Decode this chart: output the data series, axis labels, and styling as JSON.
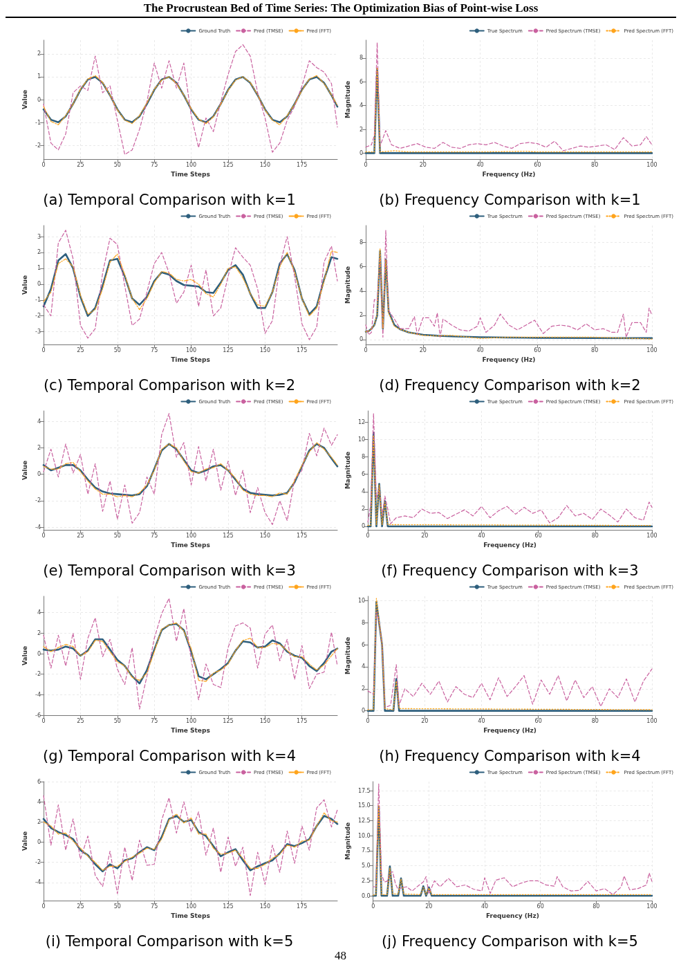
{
  "chart_data": [
    {
      "type": "line",
      "title": "(a) Temporal Comparison with k=1",
      "xlabel": "Time Steps",
      "ylabel": "Value",
      "annotations": [
        "The Procrustean Bed of Time Series: The Optimization Bias of Point-wise Loss"
      ],
      "x": [
        0,
        5,
        10,
        15,
        20,
        25,
        30,
        35,
        40,
        45,
        50,
        55,
        60,
        65,
        70,
        75,
        80,
        85,
        90,
        95,
        100,
        105,
        110,
        115,
        120,
        125,
        130,
        135,
        140,
        145,
        150,
        155,
        160,
        165,
        170,
        175,
        180,
        185,
        190,
        195,
        199
      ],
      "xlim": [
        0,
        199
      ],
      "xticks": [
        0,
        25,
        50,
        75,
        100,
        125,
        150,
        175
      ],
      "ylim": [
        -2.6,
        2.6
      ],
      "yticks": [
        -2,
        -1,
        0,
        1,
        2
      ],
      "grid": true,
      "legend": "top right",
      "series": [
        {
          "name": "Ground Truth",
          "color": "#2e5f7d",
          "line_style": "solid",
          "values": [
            -0.43,
            -0.88,
            -0.99,
            -0.73,
            -0.19,
            0.43,
            0.88,
            0.99,
            0.73,
            0.19,
            -0.43,
            -0.88,
            -0.99,
            -0.73,
            -0.19,
            0.43,
            0.88,
            0.99,
            0.73,
            0.19,
            -0.43,
            -0.88,
            -0.99,
            -0.73,
            -0.19,
            0.43,
            0.88,
            0.99,
            0.73,
            0.19,
            -0.43,
            -0.88,
            -0.99,
            -0.73,
            -0.19,
            0.43,
            0.88,
            0.99,
            0.73,
            0.19,
            -0.31
          ]
        },
        {
          "name": "Pred (TMSE)",
          "color": "#c9619f",
          "line_style": "dashed",
          "values": [
            -0.2,
            -1.9,
            -2.2,
            -1.5,
            0.3,
            0.6,
            0.4,
            1.9,
            0.3,
            0.6,
            -0.9,
            -2.4,
            -2.2,
            -1.3,
            -0.1,
            1.6,
            0.5,
            1.7,
            0.5,
            1.6,
            -0.7,
            -2.1,
            -0.8,
            -1.4,
            -0.1,
            1.1,
            2.1,
            2.4,
            1.9,
            0.3,
            -0.8,
            -2.3,
            -1.9,
            -0.9,
            -0.3,
            0.6,
            1.7,
            1.4,
            1.2,
            0.7,
            -1.2
          ]
        },
        {
          "name": "Pred (FFT)",
          "color": "#ffa41b",
          "line_style": "dashdot",
          "values": [
            -0.3,
            -0.95,
            -1.1,
            -0.7,
            -0.2,
            0.45,
            0.9,
            1.05,
            0.75,
            0.2,
            -0.45,
            -0.9,
            -1.05,
            -0.7,
            -0.15,
            0.45,
            0.85,
            1.0,
            0.7,
            0.2,
            -0.4,
            -0.85,
            -1.05,
            -0.75,
            -0.2,
            0.4,
            0.85,
            1.0,
            0.75,
            0.2,
            -0.45,
            -0.9,
            -1.1,
            -0.7,
            -0.2,
            0.4,
            0.9,
            1.05,
            0.7,
            0.2,
            -0.25
          ]
        }
      ]
    },
    {
      "type": "line",
      "title": "(b) Frequency Comparison with k=1",
      "xlabel": "Frequency (Hz)",
      "ylabel": "Magnitude",
      "xlim": [
        0,
        100
      ],
      "xticks": [
        0,
        20,
        40,
        60,
        80,
        100
      ],
      "ylim": [
        -0.5,
        9.5
      ],
      "yticks": [
        0,
        2,
        4,
        6,
        8
      ],
      "grid": true,
      "legend": "top right",
      "series": [
        {
          "name": "True Spectrum",
          "color": "#2e5f7d",
          "line_style": "solid",
          "x": [
            0,
            3,
            4,
            5,
            100
          ],
          "values": [
            0,
            0,
            7.1,
            0,
            0
          ]
        },
        {
          "name": "Pred Spectrum (TMSE)",
          "color": "#c9619f",
          "line_style": "dashed",
          "x": [
            0,
            2,
            3,
            4,
            5,
            7,
            9,
            12,
            15,
            18,
            21,
            24,
            27,
            30,
            33,
            36,
            39,
            42,
            45,
            48,
            51,
            54,
            57,
            60,
            63,
            66,
            69,
            72,
            75,
            78,
            81,
            84,
            87,
            90,
            93,
            96,
            98,
            100
          ],
          "values": [
            0.5,
            0.7,
            1.5,
            9.3,
            0.6,
            1.9,
            0.7,
            0.4,
            0.6,
            0.8,
            0.5,
            0.4,
            0.9,
            0.5,
            0.4,
            0.7,
            0.8,
            0.7,
            0.9,
            0.6,
            0.4,
            0.8,
            0.9,
            0.8,
            0.5,
            1.0,
            0.2,
            0.4,
            0.6,
            0.5,
            0.6,
            0.7,
            0.3,
            1.3,
            0.6,
            0.7,
            1.4,
            0.7
          ]
        },
        {
          "name": "Pred Spectrum (FFT)",
          "color": "#ffa41b",
          "line_style": "dotted",
          "x": [
            0,
            3,
            4,
            5,
            10,
            15,
            20,
            40,
            56,
            60,
            80,
            100
          ],
          "values": [
            0.1,
            0.1,
            7.2,
            0.1,
            0.2,
            0.1,
            0.1,
            0.1,
            0.15,
            0.1,
            0.1,
            0.1
          ]
        }
      ]
    },
    {
      "type": "line",
      "title": "(c) Temporal Comparison with k=2",
      "xlabel": "Time Steps",
      "ylabel": "Value",
      "x": [
        0,
        5,
        10,
        15,
        20,
        25,
        30,
        35,
        40,
        45,
        50,
        55,
        60,
        65,
        70,
        75,
        80,
        85,
        90,
        95,
        100,
        105,
        110,
        115,
        120,
        125,
        130,
        135,
        140,
        145,
        150,
        155,
        160,
        165,
        170,
        175,
        180,
        185,
        190,
        195,
        199
      ],
      "xlim": [
        0,
        199
      ],
      "xticks": [
        0,
        25,
        50,
        75,
        100,
        125,
        150,
        175
      ],
      "ylim": [
        -3.8,
        3.7
      ],
      "yticks": [
        -3,
        -2,
        -1,
        0,
        1,
        2,
        3
      ],
      "grid": true,
      "legend": "top right",
      "series": [
        {
          "name": "Ground Truth",
          "color": "#2e5f7d",
          "line_style": "solid",
          "values": [
            -1.4,
            -0.3,
            1.5,
            1.9,
            1.0,
            -0.8,
            -2.0,
            -1.5,
            -0.1,
            1.5,
            1.6,
            0.5,
            -0.9,
            -1.3,
            -0.8,
            0.2,
            0.75,
            0.6,
            0.2,
            -0.05,
            -0.1,
            -0.15,
            -0.5,
            -0.55,
            0.1,
            0.9,
            1.2,
            0.6,
            -0.6,
            -1.5,
            -1.5,
            -0.5,
            1.3,
            1.9,
            0.9,
            -0.9,
            -1.9,
            -1.4,
            0.3,
            1.7,
            1.6
          ]
        },
        {
          "name": "Pred (TMSE)",
          "color": "#c9619f",
          "line_style": "dashed",
          "values": [
            -1.3,
            -2.0,
            2.6,
            3.4,
            1.6,
            -2.6,
            -3.4,
            -2.8,
            0.7,
            2.9,
            2.5,
            -0.1,
            -2.6,
            -2.2,
            -0.5,
            1.3,
            2.0,
            0.7,
            -1.2,
            -0.5,
            1.2,
            -1.4,
            0.9,
            -2.0,
            -1.5,
            0.5,
            2.3,
            1.7,
            1.2,
            -0.3,
            -3.1,
            -2.3,
            1.2,
            3.0,
            0.5,
            -2.5,
            -3.5,
            -2.7,
            1.4,
            2.4,
            0.2
          ]
        },
        {
          "name": "Pred (FFT)",
          "color": "#ffa41b",
          "line_style": "dashdot",
          "values": [
            -1.1,
            -0.5,
            1.3,
            1.6,
            1.1,
            -0.7,
            -1.9,
            -1.6,
            -0.3,
            1.4,
            1.9,
            0.6,
            -0.9,
            -1.6,
            -0.9,
            0.1,
            0.8,
            0.7,
            0.3,
            0.2,
            0.3,
            0.0,
            -0.6,
            -0.8,
            0.0,
            1.0,
            1.1,
            0.4,
            -0.6,
            -1.3,
            -1.4,
            -0.5,
            1.1,
            2.0,
            0.8,
            -0.9,
            -2.0,
            -1.5,
            0.2,
            2.1,
            2.0
          ]
        }
      ]
    },
    {
      "type": "line",
      "title": "(d) Frequency Comparison with k=2",
      "xlabel": "Frequency (Hz)",
      "ylabel": "Magnitude",
      "xlim": [
        0,
        100
      ],
      "xticks": [
        0,
        20,
        40,
        60,
        80,
        100
      ],
      "ylim": [
        -0.4,
        9.4
      ],
      "yticks": [
        0,
        2,
        4,
        6,
        8
      ],
      "grid": true,
      "legend": "top right",
      "series": [
        {
          "name": "True Spectrum",
          "color": "#2e5f7d",
          "line_style": "solid",
          "x": [
            0,
            1,
            2,
            3,
            4,
            5,
            6,
            7,
            8,
            10,
            12,
            15,
            20,
            25,
            30,
            40,
            50,
            60,
            80,
            100
          ],
          "values": [
            0.65,
            0.7,
            0.9,
            1.2,
            2.0,
            7.3,
            0.9,
            6.6,
            2.3,
            1.2,
            0.85,
            0.6,
            0.4,
            0.32,
            0.27,
            0.2,
            0.17,
            0.15,
            0.13,
            0.12
          ]
        },
        {
          "name": "Pred Spectrum (TMSE)",
          "color": "#c9619f",
          "line_style": "dashed",
          "x": [
            0,
            1,
            2,
            3,
            4,
            5,
            6,
            7,
            8,
            10,
            12,
            15,
            17,
            18,
            20,
            22,
            24,
            25,
            26,
            27,
            30,
            33,
            36,
            39,
            40,
            42,
            45,
            47,
            50,
            53,
            56,
            59,
            62,
            65,
            68,
            71,
            74,
            77,
            80,
            83,
            86,
            88,
            90,
            91,
            93,
            96,
            98,
            99,
            100
          ],
          "values": [
            1.2,
            0.4,
            0.6,
            3.3,
            3.2,
            7.0,
            0.2,
            9.0,
            2.4,
            1.7,
            0.9,
            0.9,
            1.9,
            0.4,
            1.8,
            1.8,
            1.1,
            2.2,
            0.2,
            1.7,
            1.2,
            0.8,
            0.7,
            1.1,
            1.8,
            0.6,
            1.2,
            2.1,
            1.2,
            0.8,
            1.2,
            1.6,
            0.5,
            1.1,
            1.2,
            1.1,
            0.8,
            1.3,
            0.8,
            0.9,
            0.6,
            0.6,
            2.1,
            0.2,
            1.4,
            1.4,
            0.6,
            2.6,
            2.0
          ]
        },
        {
          "name": "Pred Spectrum (FFT)",
          "color": "#ffa41b",
          "line_style": "dotted",
          "x": [
            0,
            1,
            2,
            3,
            4,
            5,
            6,
            7,
            8,
            10,
            12,
            15,
            20,
            25,
            30,
            40,
            50,
            60,
            80,
            100
          ],
          "values": [
            0.65,
            0.7,
            0.9,
            1.2,
            2.1,
            7.5,
            0.9,
            6.6,
            2.2,
            1.1,
            0.85,
            0.6,
            0.35,
            0.3,
            0.35,
            0.1,
            0.2,
            0.2,
            0.2,
            0.05
          ]
        }
      ]
    },
    {
      "type": "line",
      "title": "(e) Temporal Comparison with k=3",
      "xlabel": "Time Steps",
      "ylabel": "Value",
      "x": [
        0,
        5,
        10,
        15,
        20,
        25,
        30,
        35,
        40,
        45,
        50,
        55,
        60,
        65,
        70,
        75,
        80,
        85,
        90,
        95,
        100,
        105,
        110,
        115,
        120,
        125,
        130,
        135,
        140,
        145,
        150,
        155,
        160,
        165,
        170,
        175,
        180,
        185,
        190,
        195,
        199
      ],
      "xlim": [
        0,
        199
      ],
      "xticks": [
        0,
        25,
        50,
        75,
        100,
        125,
        150,
        175
      ],
      "ylim": [
        -4.2,
        4.8
      ],
      "yticks": [
        -4,
        -2,
        0,
        2,
        4
      ],
      "grid": true,
      "legend": "top right",
      "series": [
        {
          "name": "Ground Truth",
          "color": "#2e5f7d",
          "line_style": "solid",
          "values": [
            0.7,
            0.3,
            0.5,
            0.7,
            0.7,
            0.3,
            -0.4,
            -1.0,
            -1.3,
            -1.45,
            -1.5,
            -1.55,
            -1.6,
            -1.5,
            -0.9,
            0.4,
            1.8,
            2.3,
            1.9,
            1.1,
            0.3,
            0.1,
            0.3,
            0.6,
            0.7,
            0.3,
            -0.4,
            -1.1,
            -1.4,
            -1.5,
            -1.55,
            -1.6,
            -1.55,
            -1.4,
            -0.6,
            0.6,
            1.8,
            2.3,
            2.0,
            1.2,
            0.6
          ]
        },
        {
          "name": "Pred (TMSE)",
          "color": "#c9619f",
          "line_style": "dashed",
          "values": [
            0.2,
            1.9,
            -0.2,
            2.3,
            0.1,
            1.5,
            -1.5,
            0.8,
            -2.8,
            -0.5,
            -3.4,
            -0.8,
            -3.7,
            -2.9,
            -0.2,
            -1.5,
            3.0,
            4.6,
            1.3,
            2.4,
            -0.8,
            2.1,
            -0.5,
            1.9,
            -1.2,
            1.0,
            -1.6,
            0.3,
            -2.9,
            -1.0,
            -2.9,
            -3.8,
            -2.0,
            -3.5,
            -0.4,
            0.3,
            3.1,
            1.4,
            3.5,
            2.2,
            3.0
          ]
        },
        {
          "name": "Pred (FFT)",
          "color": "#ffa41b",
          "line_style": "dashdot",
          "values": [
            0.6,
            0.4,
            0.4,
            0.8,
            0.9,
            0.2,
            -0.5,
            -1.1,
            -1.5,
            -1.5,
            -1.7,
            -1.6,
            -1.7,
            -1.4,
            -0.8,
            0.3,
            1.9,
            2.3,
            2.0,
            1.0,
            0.2,
            0.1,
            0.4,
            0.5,
            0.8,
            0.3,
            -0.3,
            -1.2,
            -1.5,
            -1.6,
            -1.6,
            -1.7,
            -1.4,
            -1.5,
            -0.5,
            0.7,
            1.7,
            2.4,
            1.9,
            1.3,
            0.7
          ]
        }
      ]
    },
    {
      "type": "line",
      "title": "(f) Frequency Comparison with k=3",
      "xlabel": "Frequency (Hz)",
      "ylabel": "Magnitude",
      "xlim": [
        0,
        100
      ],
      "xticks": [
        0,
        20,
        40,
        60,
        80,
        100
      ],
      "ylim": [
        -0.4,
        13.3
      ],
      "yticks": [
        0,
        2,
        4,
        6,
        8,
        10,
        12
      ],
      "grid": true,
      "legend": "top right",
      "series": [
        {
          "name": "True Spectrum",
          "color": "#2e5f7d",
          "line_style": "solid",
          "x": [
            0,
            1,
            2,
            3,
            4,
            5,
            6,
            7,
            100
          ],
          "values": [
            0,
            0,
            10.8,
            0,
            4.9,
            0,
            2.9,
            0,
            0
          ]
        },
        {
          "name": "Pred Spectrum (TMSE)",
          "color": "#c9619f",
          "line_style": "dashed",
          "x": [
            0,
            1,
            2,
            3,
            4,
            5,
            6,
            7,
            8,
            10,
            13,
            16,
            19,
            22,
            25,
            28,
            31,
            34,
            37,
            40,
            43,
            46,
            49,
            52,
            55,
            58,
            61,
            64,
            67,
            70,
            73,
            76,
            79,
            82,
            85,
            88,
            91,
            94,
            97,
            99,
            100
          ],
          "values": [
            0.5,
            2.5,
            13.0,
            3.2,
            4.5,
            1.2,
            3.5,
            2.0,
            0.3,
            1.0,
            1.2,
            1.0,
            2.0,
            1.5,
            1.6,
            0.9,
            1.4,
            1.9,
            1.2,
            2.3,
            1.0,
            1.8,
            2.3,
            1.4,
            2.2,
            1.5,
            1.9,
            0.4,
            1.0,
            2.4,
            1.2,
            1.5,
            0.8,
            2.0,
            1.3,
            0.5,
            2.0,
            1.0,
            0.7,
            2.8,
            2.2
          ]
        },
        {
          "name": "Pred Spectrum (FFT)",
          "color": "#ffa41b",
          "line_style": "dotted",
          "x": [
            0,
            1,
            2,
            3,
            4,
            5,
            6,
            7,
            100
          ],
          "values": [
            0.1,
            0.1,
            10.5,
            0.2,
            4.8,
            0.2,
            2.8,
            0.2,
            0.1
          ]
        }
      ]
    },
    {
      "type": "line",
      "title": "(g) Temporal Comparison with k=4",
      "xlabel": "Time Steps",
      "ylabel": "Value",
      "x": [
        0,
        5,
        10,
        15,
        20,
        25,
        30,
        35,
        40,
        45,
        50,
        55,
        60,
        65,
        70,
        75,
        80,
        85,
        90,
        95,
        100,
        105,
        110,
        115,
        120,
        125,
        130,
        135,
        140,
        145,
        150,
        155,
        160,
        165,
        170,
        175,
        180,
        185,
        190,
        195,
        199
      ],
      "xlim": [
        0,
        199
      ],
      "xticks": [
        0,
        25,
        50,
        75,
        100,
        125,
        150,
        175
      ],
      "ylim": [
        -6,
        5.6
      ],
      "yticks": [
        -6,
        -4,
        -2,
        0,
        2,
        4
      ],
      "grid": true,
      "legend": "top right",
      "series": [
        {
          "name": "Ground Truth",
          "color": "#2e5f7d",
          "line_style": "solid",
          "values": [
            0.4,
            0.3,
            0.4,
            0.7,
            0.5,
            -0.2,
            0.3,
            1.4,
            1.4,
            0.4,
            -0.6,
            -1.2,
            -2.2,
            -2.9,
            -1.6,
            0.4,
            2.3,
            2.8,
            2.9,
            2.3,
            0.2,
            -2.2,
            -2.5,
            -2.0,
            -1.5,
            -0.9,
            0.3,
            1.2,
            1.1,
            0.6,
            0.7,
            1.3,
            1.0,
            0.2,
            -0.2,
            -0.4,
            -1.2,
            -1.7,
            -0.9,
            0.2,
            0.5
          ]
        },
        {
          "name": "Pred (TMSE)",
          "color": "#c9619f",
          "line_style": "dashed",
          "values": [
            1.8,
            -1.4,
            1.8,
            -1.2,
            2.0,
            -2.5,
            1.5,
            3.5,
            -0.3,
            1.4,
            -1.5,
            -3.0,
            0.6,
            -5.4,
            -2.2,
            1.5,
            3.9,
            5.4,
            1.2,
            4.4,
            -0.6,
            -4.5,
            -1.0,
            -3.0,
            -3.3,
            0.6,
            2.7,
            3.0,
            2.5,
            -1.4,
            1.9,
            2.8,
            -0.7,
            1.4,
            -2.5,
            0.8,
            -3.4,
            -2.0,
            -1.8,
            2.1,
            -1.2
          ]
        },
        {
          "name": "Pred (FFT)",
          "color": "#ffa41b",
          "line_style": "dashdot",
          "values": [
            0.7,
            0.2,
            0.6,
            0.9,
            0.7,
            -0.2,
            0.2,
            1.3,
            1.2,
            0.2,
            -0.8,
            -1.2,
            -2.3,
            -2.6,
            -1.9,
            0.2,
            2.4,
            2.8,
            3.0,
            2.2,
            0.5,
            -2.6,
            -2.7,
            -1.9,
            -1.6,
            -1.0,
            0.3,
            1.3,
            1.5,
            0.6,
            0.6,
            1.0,
            0.9,
            0.3,
            -0.3,
            -0.3,
            -1.0,
            -1.6,
            -1.1,
            -0.2,
            0.5
          ]
        }
      ]
    },
    {
      "type": "line",
      "title": "(h) Frequency Comparison with k=4",
      "xlabel": "Frequency (Hz)",
      "ylabel": "Magnitude",
      "xlim": [
        0,
        100
      ],
      "xticks": [
        0,
        20,
        40,
        60,
        80,
        100
      ],
      "ylim": [
        -0.4,
        10.4
      ],
      "yticks": [
        0,
        2,
        4,
        6,
        8,
        10
      ],
      "grid": true,
      "legend": "top right",
      "series": [
        {
          "name": "True Spectrum",
          "color": "#2e5f7d",
          "line_style": "solid",
          "x": [
            0,
            2,
            3,
            4,
            5,
            6,
            9,
            10,
            11,
            100
          ],
          "values": [
            0,
            0,
            9.9,
            7.9,
            6.0,
            0,
            0,
            2.9,
            0,
            0
          ]
        },
        {
          "name": "Pred Spectrum (TMSE)",
          "color": "#c9619f",
          "line_style": "dashed",
          "x": [
            0,
            2,
            3,
            4,
            5,
            6,
            8,
            10,
            11,
            13,
            16,
            19,
            22,
            25,
            28,
            31,
            34,
            37,
            40,
            43,
            46,
            49,
            52,
            55,
            58,
            61,
            64,
            67,
            70,
            73,
            76,
            79,
            82,
            85,
            88,
            91,
            94,
            97,
            100
          ],
          "values": [
            1.8,
            1.5,
            9.0,
            8.0,
            6.0,
            0.3,
            0.5,
            4.2,
            0.5,
            2.0,
            1.3,
            2.5,
            1.5,
            2.7,
            0.8,
            2.2,
            1.5,
            1.2,
            2.5,
            1.0,
            3.0,
            1.3,
            2.2,
            3.2,
            0.6,
            2.8,
            1.5,
            3.2,
            0.9,
            2.8,
            1.2,
            2.2,
            0.4,
            2.0,
            1.2,
            2.9,
            0.8,
            2.7,
            3.8
          ]
        },
        {
          "name": "Pred Spectrum (FFT)",
          "color": "#ffa41b",
          "line_style": "dotted",
          "x": [
            0,
            2,
            3,
            4,
            5,
            6,
            9,
            10,
            11,
            100
          ],
          "values": [
            0.1,
            0.1,
            10.2,
            8.0,
            6.0,
            0.2,
            0.1,
            2.7,
            0.2,
            0.1
          ]
        }
      ]
    },
    {
      "type": "line",
      "title": "(i) Temporal Comparison with k=5",
      "xlabel": "Time Steps",
      "ylabel": "Value",
      "x": [
        0,
        5,
        10,
        15,
        20,
        25,
        30,
        35,
        40,
        45,
        50,
        55,
        60,
        65,
        70,
        75,
        80,
        85,
        90,
        95,
        100,
        105,
        110,
        115,
        120,
        125,
        130,
        135,
        140,
        145,
        150,
        155,
        160,
        165,
        170,
        175,
        180,
        185,
        190,
        195,
        199
      ],
      "xlim": [
        0,
        199
      ],
      "xticks": [
        0,
        25,
        50,
        75,
        100,
        125,
        150,
        175
      ],
      "ylim": [
        -5.8,
        6
      ],
      "yticks": [
        -4,
        -2,
        0,
        2,
        4,
        6
      ],
      "grid": true,
      "legend": "top right",
      "series": [
        {
          "name": "Ground Truth",
          "color": "#2e5f7d",
          "line_style": "solid",
          "values": [
            2.3,
            1.4,
            1.0,
            0.7,
            0.3,
            -0.8,
            -1.3,
            -2.2,
            -2.9,
            -2.2,
            -2.6,
            -1.8,
            -1.6,
            -1.0,
            -0.5,
            -0.8,
            0.5,
            2.3,
            2.6,
            2.0,
            2.2,
            1.0,
            0.6,
            -0.4,
            -1.4,
            -1.0,
            -0.7,
            -1.8,
            -2.8,
            -2.4,
            -2.1,
            -1.8,
            -1.1,
            -0.2,
            -0.4,
            -0.1,
            0.3,
            1.6,
            2.6,
            2.3,
            1.8
          ]
        },
        {
          "name": "Pred (TMSE)",
          "color": "#c9619f",
          "line_style": "dashed",
          "values": [
            4.6,
            -0.3,
            3.7,
            -0.8,
            2.3,
            -1.7,
            0.6,
            -3.3,
            -4.4,
            -0.9,
            -5.1,
            -0.5,
            -3.8,
            0.2,
            -2.3,
            -2.2,
            2.2,
            4.4,
            0.9,
            4.0,
            1.0,
            3.0,
            -1.3,
            1.4,
            -3.0,
            0.5,
            -2.4,
            -0.5,
            -5.3,
            -1.0,
            -4.2,
            -0.3,
            -3.0,
            1.1,
            -2.1,
            1.6,
            -0.8,
            3.4,
            4.2,
            1.5,
            3.2
          ]
        },
        {
          "name": "Pred (FFT)",
          "color": "#ffa41b",
          "line_style": "dashdot",
          "values": [
            2.0,
            1.6,
            0.8,
            0.9,
            0.1,
            -0.6,
            -1.4,
            -2.0,
            -2.8,
            -2.4,
            -2.4,
            -1.9,
            -1.5,
            -1.1,
            -0.6,
            -0.7,
            0.3,
            2.2,
            2.8,
            1.9,
            2.4,
            0.8,
            0.8,
            -0.6,
            -1.2,
            -1.1,
            -0.8,
            -1.6,
            -2.6,
            -2.6,
            -2.2,
            -1.6,
            -1.2,
            -0.3,
            -0.5,
            0.1,
            0.2,
            1.6,
            2.9,
            2.1,
            2.0
          ]
        }
      ]
    },
    {
      "type": "line",
      "title": "(j) Frequency Comparison with k=5",
      "xlabel": "Frequency (Hz)",
      "ylabel": "Magnitude",
      "annotations": [
        "48"
      ],
      "xlim": [
        0,
        100
      ],
      "xticks": [
        0,
        20,
        40,
        60,
        80,
        100
      ],
      "ylim": [
        -0.8,
        19
      ],
      "yticks": [
        {
          "value": 0,
          "label": "0.0"
        },
        2.5,
        {
          "value": 5,
          "label": "5.0"
        },
        7.5,
        {
          "value": 10,
          "label": "10.0"
        },
        12.5,
        {
          "value": 15,
          "label": "15.0"
        },
        17.5
      ],
      "grid": true,
      "legend": "top right",
      "series": [
        {
          "name": "True Spectrum",
          "color": "#2e5f7d",
          "line_style": "solid",
          "x": [
            0,
            1,
            2,
            3,
            5,
            6,
            7,
            9,
            10,
            11,
            17,
            18,
            19,
            20,
            21,
            100
          ],
          "values": [
            0,
            0,
            14.8,
            0,
            0,
            4.9,
            0,
            0,
            2.9,
            0,
            0,
            1.6,
            0,
            1.4,
            0,
            0
          ]
        },
        {
          "name": "Pred Spectrum (TMSE)",
          "color": "#c9619f",
          "line_style": "dashed",
          "x": [
            0,
            1,
            2,
            3,
            4,
            5,
            6,
            7,
            8,
            9,
            10,
            12,
            14,
            16,
            18,
            19,
            20,
            22,
            24,
            27,
            30,
            33,
            36,
            39,
            40,
            42,
            44,
            47,
            50,
            53,
            56,
            59,
            62,
            65,
            66,
            68,
            71,
            74,
            77,
            80,
            83,
            86,
            89,
            90,
            92,
            95,
            98,
            99,
            100
          ],
          "values": [
            1.5,
            1.5,
            18.6,
            3.6,
            2.3,
            2.4,
            3.8,
            4.0,
            2.0,
            1.0,
            1.3,
            1.5,
            0.8,
            1.6,
            2.3,
            3.2,
            0.3,
            2.5,
            1.5,
            2.9,
            1.5,
            1.8,
            1.1,
            0.8,
            3.0,
            0.4,
            2.6,
            3.0,
            1.5,
            2.1,
            2.5,
            2.5,
            1.8,
            1.6,
            3.2,
            1.5,
            0.8,
            0.9,
            2.4,
            0.8,
            1.2,
            0.2,
            1.5,
            3.3,
            1.0,
            1.2,
            1.8,
            3.8,
            2.4
          ]
        },
        {
          "name": "Pred Spectrum (FFT)",
          "color": "#ffa41b",
          "line_style": "dotted",
          "x": [
            0,
            1,
            2,
            3,
            5,
            6,
            7,
            9,
            10,
            11,
            17,
            18,
            19,
            20,
            21,
            100
          ],
          "values": [
            0.1,
            0.2,
            15.0,
            0.2,
            0.2,
            4.6,
            0.3,
            0.3,
            2.8,
            0.3,
            0.2,
            1.4,
            0.2,
            1.3,
            0.2,
            0.2
          ]
        }
      ]
    }
  ]
}
